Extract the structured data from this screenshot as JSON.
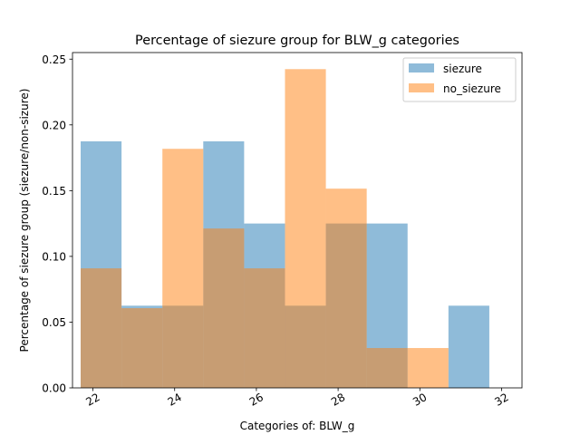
{
  "chart_data": {
    "type": "bar",
    "title": "Percentage of siezure group for BLW_g categories",
    "xlabel": "Categories of: BLW_g",
    "ylabel": "Percentage of siezure group (siezure/non-sizure)",
    "xlim": [
      21.5,
      32.5
    ],
    "ylim": [
      0,
      0.255
    ],
    "x_ticks": [
      22,
      24,
      26,
      28,
      30,
      32
    ],
    "y_ticks": [
      0.0,
      0.05,
      0.1,
      0.15,
      0.2,
      0.25
    ],
    "x_tick_labels": [
      "22",
      "24",
      "26",
      "28",
      "30",
      "32"
    ],
    "y_tick_labels": [
      "0.00",
      "0.05",
      "0.10",
      "0.15",
      "0.20",
      "0.25"
    ],
    "bin_edges": [
      21.7,
      22.7,
      23.7,
      24.7,
      25.7,
      26.7,
      27.7,
      28.7,
      29.7,
      30.7,
      31.7
    ],
    "series": [
      {
        "name": "siezure",
        "color": "#1f77b4",
        "values": [
          0.1875,
          0.0625,
          0.0625,
          0.1875,
          0.125,
          0.0625,
          0.125,
          0.125,
          0.0,
          0.0625
        ]
      },
      {
        "name": "no_siezure",
        "color": "#ff7f0e",
        "values": [
          0.0909,
          0.0606,
          0.1818,
          0.1212,
          0.0909,
          0.2424,
          0.1515,
          0.0303,
          0.0303,
          0.0
        ]
      }
    ],
    "opacity": 0.5,
    "legend_position": "top-right",
    "grid": false
  }
}
